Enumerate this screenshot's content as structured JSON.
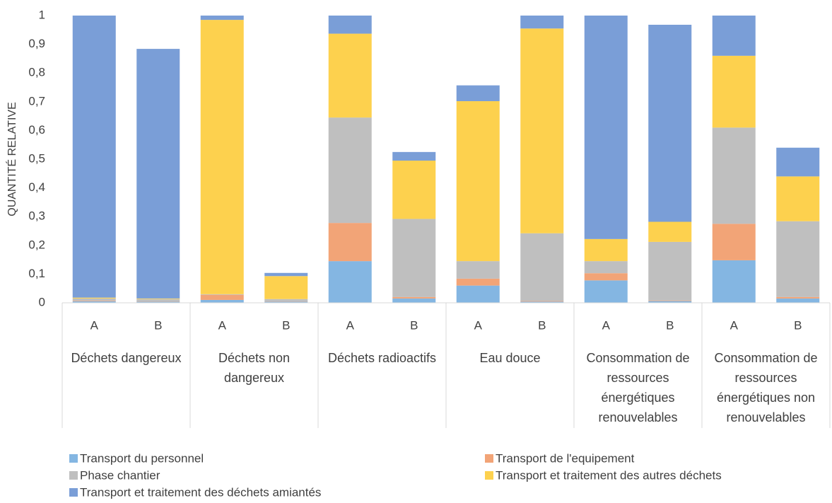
{
  "chart_data": {
    "type": "stacked_bar",
    "y_label": "QUANTITÉ RELATIVE",
    "categories": [
      "A",
      "B",
      "A",
      "B",
      "A",
      "B",
      "A",
      "B",
      "A",
      "B",
      "A",
      "B"
    ],
    "groups": [
      "Déchets dangereux",
      "Déchets non dangereux",
      "Déchets radioactifs",
      "Eau douce",
      "Consommation de ressources énergétiques renouvelables",
      "Consommation de ressources énergétiques non renouvelables"
    ],
    "series": [
      {
        "name": "Transport du personnel",
        "color": "#84b6e2",
        "values": [
          0.005,
          0.004,
          0.01,
          0.004,
          0.145,
          0.015,
          0.06,
          0.004,
          0.078,
          0.006,
          0.148,
          0.015
        ]
      },
      {
        "name": "Transport de l'equipement",
        "color": "#f2a477",
        "values": [
          0.002,
          0.001,
          0.018,
          0.001,
          0.133,
          0.005,
          0.024,
          0.002,
          0.025,
          0.002,
          0.127,
          0.005
        ]
      },
      {
        "name": "Phase chantier",
        "color": "#bfbfbf",
        "values": [
          0.008,
          0.008,
          0.002,
          0.008,
          0.367,
          0.272,
          0.061,
          0.236,
          0.042,
          0.204,
          0.335,
          0.264
        ]
      },
      {
        "name": "Transport et traitement des autres déchets",
        "color": "#fdd14e",
        "values": [
          0.003,
          0.002,
          0.955,
          0.08,
          0.292,
          0.203,
          0.557,
          0.713,
          0.077,
          0.07,
          0.25,
          0.156
        ]
      },
      {
        "name": "Transport et traitement des déchets amiantés",
        "color": "#7a9ed7",
        "values": [
          0.982,
          0.869,
          0.015,
          0.011,
          0.063,
          0.03,
          0.055,
          0.045,
          0.778,
          0.686,
          0.14,
          0.1
        ]
      }
    ],
    "ylim": [
      0,
      1
    ],
    "yticks": [
      0,
      {
        "value": 0.1,
        "label": "0,1"
      },
      {
        "value": 0.2,
        "label": "0,2"
      },
      {
        "value": 0.3,
        "label": "0,3"
      },
      {
        "value": 0.4,
        "label": "0,4"
      },
      {
        "value": 0.5,
        "label": "0,5"
      },
      {
        "value": 0.6,
        "label": "0,6"
      },
      {
        "value": 0.7,
        "label": "0,7"
      },
      {
        "value": 0.8,
        "label": "0,8"
      },
      {
        "value": 0.9,
        "label": "0,9"
      },
      1
    ],
    "grid": false,
    "legend": "bottom"
  }
}
